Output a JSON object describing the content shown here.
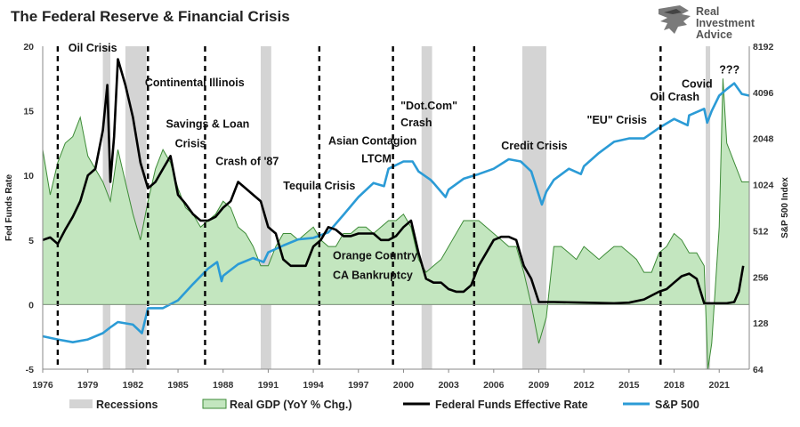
{
  "title": "The Federal Reserve & Financial Crisis",
  "logo": {
    "line1": "Real",
    "line2": "Investment",
    "line3": "Advice"
  },
  "colors": {
    "gdp_fill": "#c3e6bf",
    "gdp_stroke": "#3d8b37",
    "fed": "#000000",
    "sp": "#2b9bd6",
    "recession": "#d4d4d4"
  },
  "chart_data": {
    "type": "area",
    "xlim": [
      1976,
      2023
    ],
    "x_ticks": [
      "1976",
      "1979",
      "1982",
      "1985",
      "1988",
      "1991",
      "1994",
      "1997",
      "2000",
      "2003",
      "2006",
      "2009",
      "2012",
      "2015",
      "2018",
      "2021"
    ],
    "y_left": {
      "label": "Fed Funds Rate",
      "ylim": [
        -5,
        20
      ],
      "ticks": [
        "-5",
        "0",
        "5",
        "10",
        "15",
        "20"
      ]
    },
    "y_right": {
      "label": "S&P 500 Index",
      "scale": "log2",
      "ylim": [
        64,
        8192
      ],
      "ticks": [
        "64",
        "128",
        "256",
        "512",
        "1024",
        "2048",
        "4096",
        "8192"
      ]
    },
    "legend": [
      "Recessions",
      "Real GDP (YoY % Chg.)",
      "Federal Funds Effective Rate",
      "S&P 500"
    ],
    "recessions": [
      [
        1980.0,
        1980.5
      ],
      [
        1981.5,
        1982.9
      ],
      [
        1990.5,
        1991.2
      ],
      [
        2001.2,
        2001.9
      ],
      [
        2007.9,
        2009.5
      ],
      [
        2020.1,
        2020.4
      ]
    ],
    "events": [
      {
        "x": 1977.0,
        "label": "Oil Crisis"
      },
      {
        "x": 1983.0,
        "label": "Continental Illinois"
      },
      {
        "x": 1986.8,
        "label": "Savings & Loan Crisis"
      },
      {
        "x": 1994.4,
        "label": "Tequila Crisis"
      },
      {
        "x": 1999.3,
        "label": "Asian Contagion LTCM"
      },
      {
        "x": 2004.7,
        "label": "\"Dot.Com\" Crash"
      },
      {
        "x": 2017.1,
        "label": "Credit Crisis"
      }
    ],
    "annotations": [
      {
        "text": "Oil Crisis",
        "x": 1977.7,
        "y": 19.6
      },
      {
        "text": "Continental Illinois",
        "x": 1982.8,
        "y": 16.9
      },
      {
        "text": "Savings & Loan",
        "x": 1984.2,
        "y": 13.7
      },
      {
        "text": "Crisis",
        "x": 1984.8,
        "y": 12.2
      },
      {
        "text": "Crash of '87",
        "x": 1987.5,
        "y": 10.8
      },
      {
        "text": "Tequila Crisis",
        "x": 1992.0,
        "y": 8.9
      },
      {
        "text": "Asian Contagion",
        "x": 1995.0,
        "y": 12.4
      },
      {
        "text": "LTCM",
        "x": 1997.2,
        "y": 11.0
      },
      {
        "text": "\"Dot.Com\"",
        "x": 1999.8,
        "y": 15.1
      },
      {
        "text": "Crash",
        "x": 1999.8,
        "y": 13.8
      },
      {
        "text": "Orange Country",
        "x": 1995.3,
        "y": 3.5
      },
      {
        "text": "CA Bankruptcy",
        "x": 1995.3,
        "y": 2.0
      },
      {
        "text": "Credit Crisis",
        "x": 2006.5,
        "y": 12.0
      },
      {
        "text": "\"EU\" Crisis",
        "x": 2012.2,
        "y": 14.0
      },
      {
        "text": "Oil Crash",
        "x": 2016.4,
        "y": 15.8
      },
      {
        "text": "Covid",
        "x": 2018.5,
        "y": 16.8
      },
      {
        "text": "???",
        "x": 2021.0,
        "y": 17.9
      }
    ],
    "series": [
      {
        "name": "Real GDP (YoY % Chg.)",
        "x": [
          1976,
          1976.5,
          1977,
          1977.5,
          1978,
          1978.5,
          1979,
          1979.5,
          1980,
          1980.5,
          1981,
          1981.5,
          1982,
          1982.5,
          1983,
          1983.5,
          1984,
          1984.5,
          1985,
          1985.5,
          1986,
          1986.5,
          1987,
          1987.5,
          1988,
          1988.5,
          1989,
          1989.5,
          1990,
          1990.5,
          1991,
          1991.5,
          1992,
          1992.5,
          1993,
          1993.5,
          1994,
          1994.5,
          1995,
          1995.5,
          1996,
          1996.5,
          1997,
          1997.5,
          1998,
          1998.5,
          1999,
          1999.5,
          2000,
          2000.5,
          2001,
          2001.5,
          2002,
          2002.5,
          2003,
          2003.5,
          2004,
          2004.5,
          2005,
          2005.5,
          2006,
          2006.5,
          2007,
          2007.5,
          2008,
          2008.5,
          2009,
          2009.5,
          2010,
          2010.5,
          2011,
          2011.5,
          2012,
          2012.5,
          2013,
          2013.5,
          2014,
          2014.5,
          2015,
          2015.5,
          2016,
          2016.5,
          2017,
          2017.5,
          2018,
          2018.5,
          2019,
          2019.5,
          2020,
          2020.25,
          2020.5,
          2021,
          2021.25,
          2021.5,
          2022,
          2022.5,
          2023
        ],
        "values": [
          12.0,
          8.5,
          11.0,
          12.5,
          13.0,
          14.5,
          11.5,
          10.5,
          9.5,
          8.0,
          12.0,
          9.5,
          7.0,
          5.0,
          8.0,
          10.5,
          12.0,
          11.0,
          9.0,
          7.5,
          7.0,
          6.0,
          6.5,
          7.0,
          8.0,
          7.5,
          6.0,
          5.5,
          4.5,
          3.0,
          3.0,
          4.5,
          5.5,
          5.5,
          5.0,
          5.5,
          6.0,
          5.0,
          4.5,
          4.5,
          5.5,
          5.5,
          6.0,
          6.0,
          5.5,
          6.0,
          6.5,
          6.5,
          7.0,
          6.0,
          3.5,
          2.5,
          3.0,
          3.5,
          4.5,
          5.5,
          6.5,
          6.5,
          6.5,
          6.0,
          5.5,
          5.0,
          4.5,
          4.5,
          2.5,
          0.0,
          -3.0,
          -1.0,
          4.5,
          4.5,
          4.0,
          3.5,
          4.5,
          4.0,
          3.5,
          4.0,
          4.5,
          4.5,
          4.0,
          3.5,
          2.5,
          2.5,
          4.0,
          4.5,
          5.5,
          5.0,
          4.0,
          4.0,
          3.0,
          -5.0,
          -3.0,
          6.0,
          17.5,
          12.5,
          11.0,
          9.5,
          9.5
        ]
      },
      {
        "name": "Federal Funds Effective Rate",
        "x": [
          1976,
          1976.5,
          1977,
          1977.5,
          1978,
          1978.5,
          1979,
          1979.5,
          1980,
          1980.3,
          1980.5,
          1980.75,
          1981,
          1981.5,
          1982,
          1982.5,
          1983,
          1983.5,
          1984,
          1984.5,
          1985,
          1985.5,
          1986,
          1986.5,
          1987,
          1987.5,
          1988,
          1988.5,
          1989,
          1989.5,
          1990,
          1990.5,
          1991,
          1991.5,
          1992,
          1992.5,
          1993,
          1993.5,
          1994,
          1994.5,
          1995,
          1995.5,
          1996,
          1996.5,
          1997,
          1997.5,
          1998,
          1998.5,
          1999,
          1999.5,
          2000,
          2000.5,
          2001,
          2001.5,
          2002,
          2002.5,
          2003,
          2003.5,
          2004,
          2004.5,
          2005,
          2005.5,
          2006,
          2006.5,
          2007,
          2007.5,
          2008,
          2008.5,
          2009,
          2010,
          2012,
          2014,
          2015,
          2016,
          2017,
          2017.5,
          2018,
          2018.5,
          2019,
          2019.5,
          2020,
          2020.5,
          2021,
          2021.5,
          2022,
          2022.3,
          2022.6
        ],
        "values": [
          5.0,
          5.2,
          4.7,
          5.8,
          6.8,
          8.0,
          10.0,
          10.5,
          13.5,
          17.0,
          9.5,
          13.0,
          19.0,
          17.0,
          14.5,
          11.0,
          9.0,
          9.5,
          10.5,
          11.5,
          8.5,
          7.8,
          7.0,
          6.5,
          6.5,
          6.8,
          7.5,
          8.0,
          9.5,
          9.0,
          8.5,
          8.0,
          6.0,
          5.5,
          3.5,
          3.0,
          3.0,
          3.0,
          4.5,
          5.0,
          6.0,
          5.8,
          5.3,
          5.3,
          5.5,
          5.5,
          5.5,
          5.0,
          5.0,
          5.3,
          6.0,
          6.5,
          4.0,
          2.0,
          1.7,
          1.7,
          1.2,
          1.0,
          1.0,
          1.5,
          3.0,
          4.0,
          5.0,
          5.25,
          5.25,
          5.0,
          3.0,
          2.0,
          0.2,
          0.2,
          0.15,
          0.1,
          0.15,
          0.4,
          1.0,
          1.2,
          1.7,
          2.2,
          2.4,
          2.0,
          0.1,
          0.1,
          0.1,
          0.1,
          0.2,
          1.0,
          3.0
        ]
      },
      {
        "name": "S&P 500",
        "x": [
          1976,
          1977,
          1978,
          1979,
          1980,
          1980.5,
          1981,
          1982,
          1982.6,
          1983,
          1984,
          1985,
          1986,
          1987,
          1987.6,
          1987.9,
          1988,
          1989,
          1990,
          1990.7,
          1991,
          1992,
          1993,
          1994,
          1995,
          1996,
          1997,
          1998,
          1998.7,
          1999,
          2000,
          2000.6,
          2001,
          2001.8,
          2002,
          2002.8,
          2003,
          2004,
          2005,
          2006,
          2007,
          2007.8,
          2008.5,
          2009.2,
          2009.5,
          2010,
          2011,
          2011.8,
          2012,
          2013,
          2014,
          2015,
          2016,
          2017,
          2018,
          2018.9,
          2019,
          2020,
          2020.2,
          2020.5,
          2021,
          2021.5,
          2022,
          2022.5,
          2023
        ],
        "values": [
          105,
          100,
          96,
          100,
          110,
          120,
          130,
          125,
          110,
          160,
          160,
          180,
          230,
          290,
          320,
          240,
          260,
          310,
          340,
          320,
          370,
          410,
          450,
          460,
          500,
          650,
          850,
          1050,
          1000,
          1300,
          1450,
          1450,
          1250,
          1100,
          1050,
          850,
          950,
          1120,
          1200,
          1300,
          1500,
          1450,
          1250,
          760,
          920,
          1100,
          1300,
          1200,
          1350,
          1650,
          1950,
          2050,
          2050,
          2400,
          2750,
          2500,
          2900,
          3200,
          2600,
          3100,
          3900,
          4300,
          4700,
          4000,
          3900
        ]
      }
    ]
  }
}
